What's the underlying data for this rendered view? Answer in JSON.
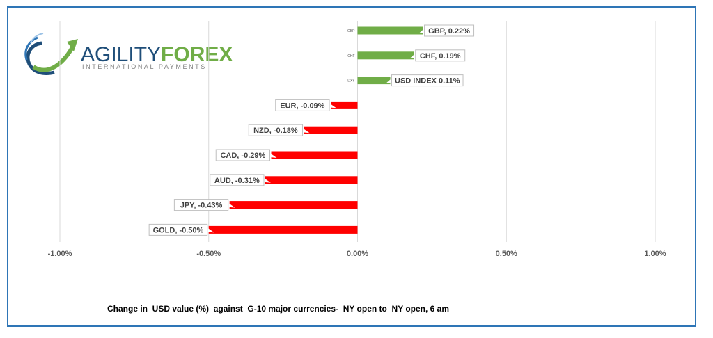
{
  "logo": {
    "word_part1": "AGILITY",
    "word_part2": "FOREX",
    "tagline": "INTERNATIONAL PAYMENTS",
    "colors": {
      "part1": "#1f4e79",
      "part2": "#70ad47",
      "tagline": "#7f7f7f"
    }
  },
  "caption": "Change in  USD value (%)  against  G-10 major currencies-  NY open to  NY open, 6 am",
  "colors": {
    "positive": "#70ad47",
    "negative": "#ff0000",
    "border": "#2e75b6",
    "grid": "#d9d9d9"
  },
  "chart_data": {
    "type": "bar",
    "orientation": "horizontal",
    "categories": [
      "GBP",
      "CHF",
      "DXY",
      "EUR",
      "NZD",
      "CAD",
      "AUD",
      "JPY",
      "GOLD"
    ],
    "values": [
      0.22,
      0.19,
      0.11,
      -0.09,
      -0.18,
      -0.29,
      -0.31,
      -0.43,
      -0.5
    ],
    "data_labels": [
      "GBP, 0.22%",
      "CHF, 0.19%",
      "USD INDEX 0.11%",
      "EUR, -0.09%",
      "NZD, -0.18%",
      "CAD, -0.29%",
      "AUD, -0.31%",
      "JPY, -0.43%",
      "GOLD, -0.50%"
    ],
    "x_ticks": [
      -1.0,
      -0.5,
      0.0,
      0.5,
      1.0
    ],
    "x_tick_labels": [
      "-1.00%",
      "-0.50%",
      "0.00%",
      "0.50%",
      "1.00%"
    ],
    "xlim": [
      -1.0,
      1.0
    ],
    "grid": true,
    "title": "",
    "xlabel": "",
    "ylabel": ""
  }
}
